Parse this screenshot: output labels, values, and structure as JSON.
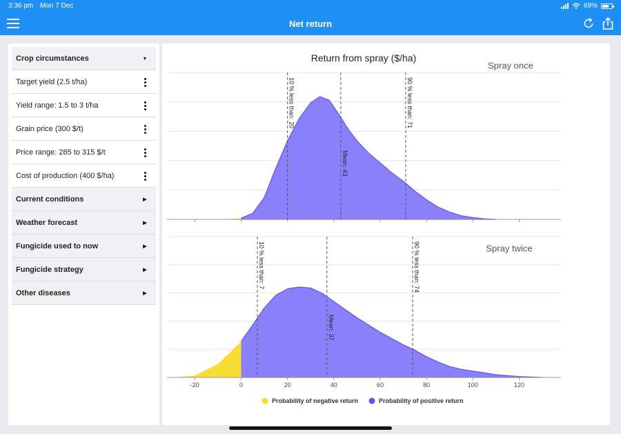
{
  "status": {
    "time": "3:36 pm",
    "date": "Mon 7 Dec",
    "battery": "69%",
    "battery_level": 0.69
  },
  "nav": {
    "title": "Net return",
    "accent": "#1e90f5"
  },
  "sidebar": {
    "items": [
      {
        "label": "Crop circumstances",
        "kind": "section",
        "control": "chevron-down-icon"
      },
      {
        "label": "Target yield (2.5 t/ha)",
        "kind": "option",
        "control": "more-vertical-icon"
      },
      {
        "label": "Yield range: 1.5 to 3 t/ha",
        "kind": "option",
        "control": "more-vertical-icon"
      },
      {
        "label": "Grain price (300 $/t)",
        "kind": "option",
        "control": "more-vertical-icon"
      },
      {
        "label": "Price range: 285 to 315 $/t",
        "kind": "option",
        "control": "more-vertical-icon"
      },
      {
        "label": "Cost of production (400 $/ha)",
        "kind": "option",
        "control": "more-vertical-icon"
      },
      {
        "label": "Current conditions",
        "kind": "section",
        "control": "chevron-right-icon"
      },
      {
        "label": "Weather forecast",
        "kind": "section",
        "control": "chevron-right-icon"
      },
      {
        "label": "Fungicide used to now",
        "kind": "section",
        "control": "chevron-right-icon"
      },
      {
        "label": "Fungicide strategy",
        "kind": "section",
        "control": "chevron-right-icon"
      },
      {
        "label": "Other diseases",
        "kind": "section",
        "control": "chevron-right-icon"
      }
    ]
  },
  "chart_data": {
    "type": "area",
    "title": "Return from spray ($/ha)",
    "xlim": [
      -32,
      138
    ],
    "x_ticks": [
      -20,
      0,
      20,
      40,
      60,
      80,
      100,
      120
    ],
    "grid": true,
    "legend_position": "bottom",
    "legend": [
      {
        "label": "Probability of negative return",
        "color": "#f7dc31"
      },
      {
        "label": "Probability of positive return",
        "color": "#5f55ee"
      }
    ],
    "colors": {
      "negative": "#f7dc31",
      "positive": "#8a80fb",
      "positive_line": "#5f55ee"
    },
    "panels": [
      {
        "label": "Spray once",
        "curve": [
          [
            -8,
            0
          ],
          [
            0,
            0.01
          ],
          [
            5,
            0.05
          ],
          [
            10,
            0.18
          ],
          [
            15,
            0.42
          ],
          [
            20,
            0.64
          ],
          [
            25,
            0.82
          ],
          [
            30,
            0.95
          ],
          [
            34,
            1.0
          ],
          [
            38,
            0.97
          ],
          [
            42,
            0.86
          ],
          [
            46,
            0.74
          ],
          [
            50,
            0.64
          ],
          [
            55,
            0.54
          ],
          [
            60,
            0.46
          ],
          [
            65,
            0.38
          ],
          [
            70,
            0.31
          ],
          [
            75,
            0.23
          ],
          [
            80,
            0.16
          ],
          [
            85,
            0.1
          ],
          [
            90,
            0.06
          ],
          [
            95,
            0.03
          ],
          [
            100,
            0.015
          ],
          [
            105,
            0.005
          ],
          [
            110,
            0.0
          ]
        ],
        "markers": [
          {
            "x": 20,
            "label": "10 % less than: 20"
          },
          {
            "x": 43,
            "label": "Mean: 43"
          },
          {
            "x": 71,
            "label": "90 % less than: 71"
          }
        ]
      },
      {
        "label": "Spray twice",
        "curve": [
          [
            -30,
            0
          ],
          [
            -20,
            0.02
          ],
          [
            -10,
            0.15
          ],
          [
            -5,
            0.27
          ],
          [
            0,
            0.4
          ],
          [
            5,
            0.58
          ],
          [
            10,
            0.77
          ],
          [
            15,
            0.91
          ],
          [
            20,
            0.98
          ],
          [
            25,
            1.0
          ],
          [
            30,
            0.99
          ],
          [
            35,
            0.93
          ],
          [
            40,
            0.84
          ],
          [
            45,
            0.75
          ],
          [
            50,
            0.66
          ],
          [
            55,
            0.58
          ],
          [
            60,
            0.5
          ],
          [
            65,
            0.43
          ],
          [
            70,
            0.36
          ],
          [
            75,
            0.3
          ],
          [
            80,
            0.23
          ],
          [
            85,
            0.17
          ],
          [
            90,
            0.12
          ],
          [
            95,
            0.09
          ],
          [
            100,
            0.07
          ],
          [
            105,
            0.05
          ],
          [
            110,
            0.03
          ],
          [
            115,
            0.02
          ],
          [
            120,
            0.01
          ],
          [
            130,
            0.0
          ]
        ],
        "markers": [
          {
            "x": 7,
            "label": "10 % less than: 7"
          },
          {
            "x": 37,
            "label": "Mean: 37"
          },
          {
            "x": 74,
            "label": "90 % less than: 74"
          }
        ]
      }
    ]
  }
}
